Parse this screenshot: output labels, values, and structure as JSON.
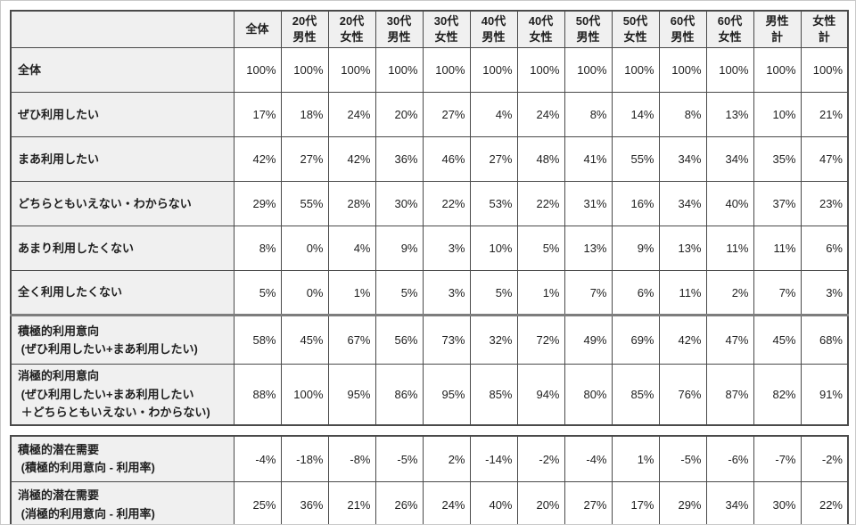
{
  "accent_colors": {
    "grid_border": "#4a4a4a",
    "thick_separator": "#7d7d7d",
    "header_background": "#f0f0f0",
    "cell_background": "#ffffff",
    "text": "#1f1f1f"
  },
  "chart_data": {
    "type": "table",
    "corner_label": "",
    "columns": [
      "全体",
      "20代\n男性",
      "20代\n女性",
      "30代\n男性",
      "30代\n女性",
      "40代\n男性",
      "40代\n女性",
      "50代\n男性",
      "50代\n女性",
      "60代\n男性",
      "60代\n女性",
      "男性\n計",
      "女性\n計"
    ],
    "rows": [
      {
        "label": "全体",
        "section": "base",
        "values": [
          "100%",
          "100%",
          "100%",
          "100%",
          "100%",
          "100%",
          "100%",
          "100%",
          "100%",
          "100%",
          "100%",
          "100%",
          "100%"
        ]
      },
      {
        "label": "ぜひ利用したい",
        "section": "response",
        "values": [
          "17%",
          "18%",
          "24%",
          "20%",
          "27%",
          "4%",
          "24%",
          "8%",
          "14%",
          "8%",
          "13%",
          "10%",
          "21%"
        ]
      },
      {
        "label": "まあ利用したい",
        "section": "response",
        "values": [
          "42%",
          "27%",
          "42%",
          "36%",
          "46%",
          "27%",
          "48%",
          "41%",
          "55%",
          "34%",
          "34%",
          "35%",
          "47%"
        ]
      },
      {
        "label": "どちらともいえない・わからない",
        "section": "response",
        "values": [
          "29%",
          "55%",
          "28%",
          "30%",
          "22%",
          "53%",
          "22%",
          "31%",
          "16%",
          "34%",
          "40%",
          "37%",
          "23%"
        ]
      },
      {
        "label": "あまり利用したくない",
        "section": "response",
        "values": [
          "8%",
          "0%",
          "4%",
          "9%",
          "3%",
          "10%",
          "5%",
          "13%",
          "9%",
          "13%",
          "11%",
          "11%",
          "6%"
        ]
      },
      {
        "label": "全く利用したくない",
        "section": "response",
        "values": [
          "5%",
          "0%",
          "1%",
          "5%",
          "3%",
          "5%",
          "1%",
          "7%",
          "6%",
          "11%",
          "2%",
          "7%",
          "3%"
        ]
      },
      {
        "label": "積極的利用意向\n (ぜひ利用したい+まあ利用したい)",
        "section": "summary",
        "values": [
          "58%",
          "45%",
          "67%",
          "56%",
          "73%",
          "32%",
          "72%",
          "49%",
          "69%",
          "42%",
          "47%",
          "45%",
          "68%"
        ]
      },
      {
        "label": "消極的利用意向\n (ぜひ利用したい+まあ利用したい\n ＋どちらともいえない・わからない)",
        "section": "summary",
        "values": [
          "88%",
          "100%",
          "95%",
          "86%",
          "95%",
          "85%",
          "94%",
          "80%",
          "85%",
          "76%",
          "87%",
          "82%",
          "91%"
        ]
      },
      {
        "label": "積極的潜在需要\n (積極的利用意向 - 利用率)",
        "section": "demand",
        "values": [
          "-4%",
          "-18%",
          "-8%",
          "-5%",
          "2%",
          "-14%",
          "-2%",
          "-4%",
          "1%",
          "-5%",
          "-6%",
          "-7%",
          "-2%"
        ]
      },
      {
        "label": "消極的潜在需要\n (消極的利用意向 - 利用率)",
        "section": "demand",
        "values": [
          "25%",
          "36%",
          "21%",
          "26%",
          "24%",
          "40%",
          "20%",
          "27%",
          "17%",
          "29%",
          "34%",
          "30%",
          "22%"
        ]
      }
    ]
  }
}
